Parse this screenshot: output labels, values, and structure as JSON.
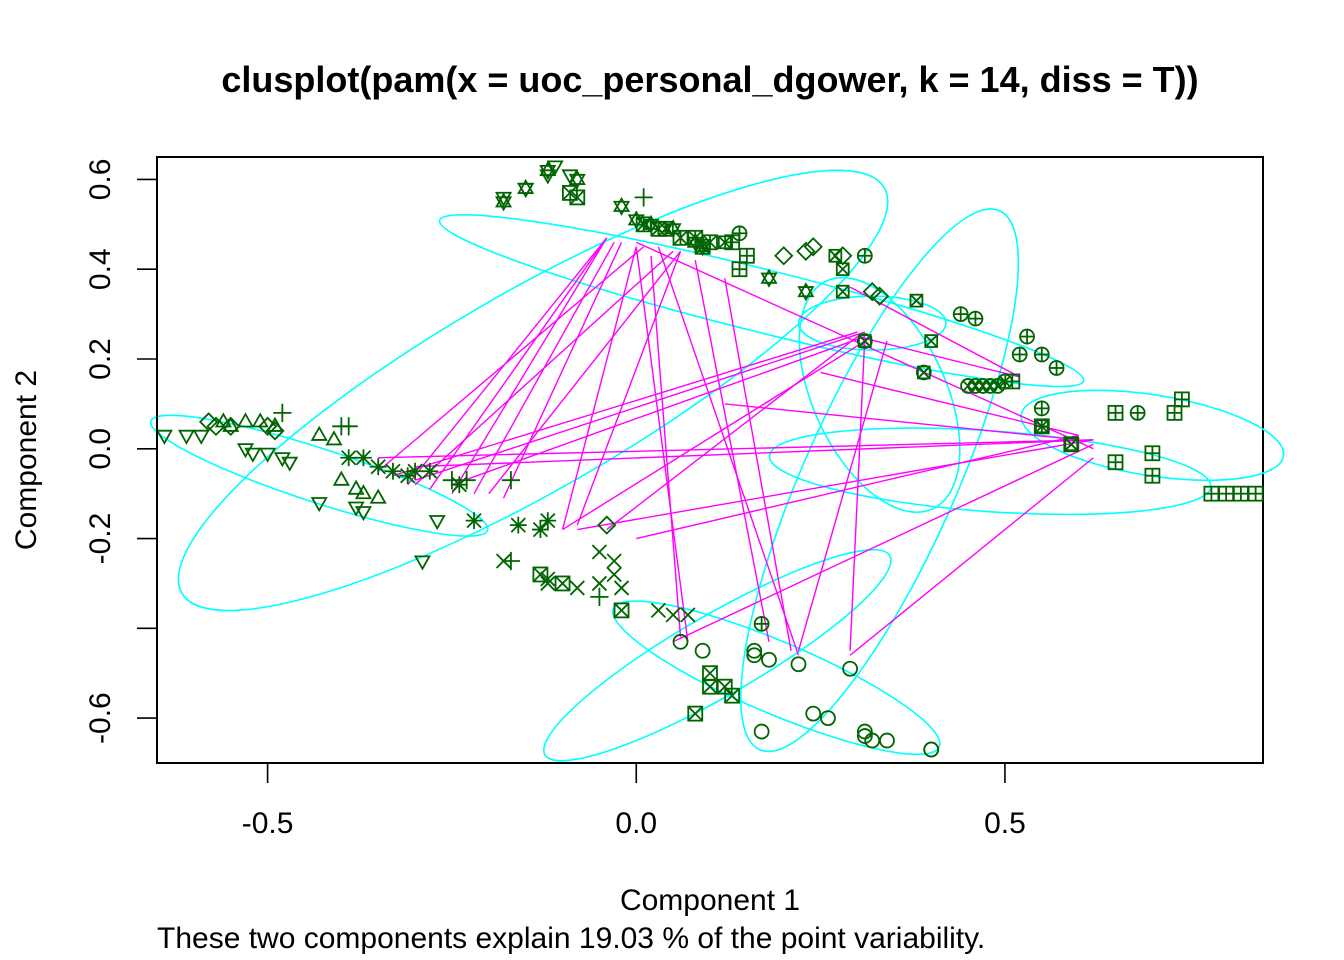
{
  "chart_data": {
    "type": "scatter",
    "title": "clusplot(pam(x = uoc_personal_dgower, k = 14, diss = T))",
    "xlabel": "Component 1",
    "ylabel": "Component 2",
    "subtitle": "These two components explain 19.03 % of the point variability.",
    "xlim": [
      -0.65,
      0.85
    ],
    "ylim": [
      -0.7,
      0.65
    ],
    "x_ticks": [
      {
        "value": -0.5,
        "label": "-0.5"
      },
      {
        "value": 0.0,
        "label": "0.0"
      },
      {
        "value": 0.5,
        "label": "0.5"
      }
    ],
    "y_ticks": [
      {
        "value": -0.6,
        "label": "-0.6"
      },
      {
        "value": -0.4,
        "label": ""
      },
      {
        "value": -0.2,
        "label": "-0.2"
      },
      {
        "value": 0.0,
        "label": "0.0"
      },
      {
        "value": 0.2,
        "label": "0.2"
      },
      {
        "value": 0.4,
        "label": "0.4"
      },
      {
        "value": 0.6,
        "label": "0.6"
      }
    ],
    "colors": {
      "points": "#006400",
      "ellipses": "#00ffff",
      "lines": "#ff00ff",
      "frame": "#000000"
    },
    "clusters": [
      {
        "id": 1,
        "symbol": "circle",
        "points": [
          [
            0.06,
            -0.43
          ],
          [
            0.09,
            -0.45
          ],
          [
            0.16,
            -0.45
          ],
          [
            0.16,
            -0.46
          ],
          [
            0.22,
            -0.48
          ],
          [
            0.29,
            -0.49
          ],
          [
            0.18,
            -0.47
          ],
          [
            0.24,
            -0.59
          ],
          [
            0.26,
            -0.6
          ],
          [
            0.31,
            -0.63
          ],
          [
            0.31,
            -0.64
          ],
          [
            0.32,
            -0.65
          ],
          [
            0.34,
            -0.65
          ],
          [
            0.4,
            -0.67
          ],
          [
            0.4,
            -0.67
          ],
          [
            0.17,
            -0.63
          ]
        ]
      },
      {
        "id": 2,
        "symbol": "triangle",
        "points": [
          [
            -0.56,
            0.06
          ],
          [
            -0.55,
            0.05
          ],
          [
            -0.53,
            0.06
          ],
          [
            -0.51,
            0.06
          ],
          [
            -0.49,
            0.05
          ],
          [
            -0.43,
            0.03
          ],
          [
            -0.41,
            0.02
          ],
          [
            -0.4,
            -0.07
          ],
          [
            -0.38,
            -0.09
          ],
          [
            -0.37,
            -0.1
          ],
          [
            -0.35,
            -0.11
          ]
        ]
      },
      {
        "id": 3,
        "symbol": "plus",
        "points": [
          [
            -0.48,
            0.08
          ],
          [
            -0.4,
            0.05
          ],
          [
            -0.39,
            0.05
          ],
          [
            -0.25,
            -0.07
          ],
          [
            -0.23,
            -0.07
          ],
          [
            -0.17,
            -0.07
          ],
          [
            -0.17,
            -0.25
          ],
          [
            0.01,
            0.56
          ],
          [
            -0.05,
            -0.33
          ]
        ]
      },
      {
        "id": 4,
        "symbol": "cross",
        "points": [
          [
            -0.05,
            -0.23
          ],
          [
            -0.03,
            -0.25
          ],
          [
            -0.03,
            -0.28
          ],
          [
            -0.02,
            -0.31
          ],
          [
            -0.05,
            -0.3
          ],
          [
            -0.12,
            -0.29
          ],
          [
            -0.08,
            -0.31
          ],
          [
            0.03,
            -0.36
          ],
          [
            0.05,
            -0.37
          ],
          [
            -0.18,
            -0.25
          ],
          [
            0.07,
            -0.37
          ],
          [
            -0.12,
            -0.3
          ]
        ]
      },
      {
        "id": 5,
        "symbol": "diamond",
        "points": [
          [
            -0.58,
            0.06
          ],
          [
            -0.57,
            0.05
          ],
          [
            -0.55,
            0.05
          ],
          [
            -0.5,
            0.05
          ],
          [
            -0.49,
            0.04
          ],
          [
            -0.04,
            -0.17
          ],
          [
            0.2,
            0.43
          ],
          [
            0.23,
            0.44
          ],
          [
            0.24,
            0.45
          ],
          [
            0.28,
            0.43
          ],
          [
            0.32,
            0.35
          ],
          [
            0.33,
            0.34
          ]
        ]
      },
      {
        "id": 6,
        "symbol": "triangle-down",
        "points": [
          [
            -0.64,
            0.03
          ],
          [
            -0.61,
            0.03
          ],
          [
            -0.59,
            0.03
          ],
          [
            -0.53,
            0.0
          ],
          [
            -0.52,
            -0.01
          ],
          [
            -0.5,
            -0.01
          ],
          [
            -0.48,
            -0.02
          ],
          [
            -0.47,
            -0.03
          ],
          [
            -0.43,
            -0.12
          ],
          [
            -0.38,
            -0.13
          ],
          [
            -0.37,
            -0.14
          ],
          [
            -0.29,
            -0.25
          ],
          [
            -0.27,
            -0.16
          ],
          [
            -0.18,
            0.56
          ],
          [
            -0.15,
            0.58
          ],
          [
            -0.12,
            0.61
          ],
          [
            -0.11,
            0.63
          ],
          [
            -0.09,
            0.61
          ]
        ]
      },
      {
        "id": 7,
        "symbol": "x-in-square",
        "points": [
          [
            0.4,
            0.24
          ],
          [
            0.39,
            0.17
          ],
          [
            0.31,
            0.24
          ],
          [
            0.55,
            0.05
          ],
          [
            0.59,
            0.01
          ],
          [
            0.38,
            0.33
          ],
          [
            0.28,
            0.35
          ],
          [
            0.28,
            0.4
          ],
          [
            0.27,
            0.43
          ],
          [
            0.12,
            0.46
          ]
        ]
      },
      {
        "id": 8,
        "symbol": "asterisk",
        "points": [
          [
            -0.39,
            -0.02
          ],
          [
            -0.37,
            -0.02
          ],
          [
            -0.35,
            -0.04
          ],
          [
            -0.33,
            -0.05
          ],
          [
            -0.31,
            -0.06
          ],
          [
            -0.3,
            -0.05
          ],
          [
            -0.28,
            -0.05
          ],
          [
            -0.24,
            -0.08
          ],
          [
            -0.22,
            -0.16
          ],
          [
            -0.16,
            -0.17
          ],
          [
            -0.13,
            -0.18
          ],
          [
            -0.12,
            -0.16
          ]
        ]
      },
      {
        "id": 9,
        "symbol": "star-of-david",
        "points": [
          [
            -0.18,
            0.55
          ],
          [
            -0.15,
            0.58
          ],
          [
            -0.12,
            0.62
          ],
          [
            -0.08,
            0.6
          ],
          [
            -0.02,
            0.54
          ],
          [
            0.0,
            0.51
          ],
          [
            0.02,
            0.5
          ],
          [
            0.05,
            0.49
          ],
          [
            0.08,
            0.46
          ],
          [
            0.09,
            0.45
          ],
          [
            0.18,
            0.38
          ],
          [
            0.23,
            0.35
          ]
        ]
      },
      {
        "id": 10,
        "symbol": "circle-plus",
        "points": [
          [
            0.14,
            0.48
          ],
          [
            0.31,
            0.43
          ],
          [
            0.44,
            0.3
          ],
          [
            0.46,
            0.29
          ],
          [
            0.53,
            0.25
          ],
          [
            0.52,
            0.21
          ],
          [
            0.55,
            0.21
          ],
          [
            0.57,
            0.18
          ],
          [
            0.55,
            0.09
          ],
          [
            0.68,
            0.08
          ],
          [
            0.17,
            -0.39
          ]
        ]
      },
      {
        "id": 11,
        "symbol": "square-plus",
        "points": [
          [
            0.14,
            0.4
          ],
          [
            0.15,
            0.43
          ],
          [
            0.13,
            0.46
          ],
          [
            0.51,
            0.15
          ],
          [
            0.55,
            0.05
          ],
          [
            0.65,
            0.08
          ],
          [
            0.73,
            0.08
          ],
          [
            0.74,
            0.11
          ],
          [
            0.7,
            -0.01
          ],
          [
            0.7,
            -0.06
          ],
          [
            0.65,
            -0.03
          ],
          [
            0.78,
            -0.1
          ],
          [
            0.8,
            -0.1
          ],
          [
            0.82,
            -0.1
          ],
          [
            0.84,
            -0.1
          ]
        ]
      },
      {
        "id": 12,
        "symbol": "circle-cross",
        "points": [
          [
            0.46,
            0.14
          ],
          [
            0.47,
            0.14
          ],
          [
            0.48,
            0.14
          ],
          [
            0.45,
            0.14
          ],
          [
            0.49,
            0.14
          ],
          [
            0.5,
            0.15
          ],
          [
            0.31,
            0.24
          ],
          [
            0.39,
            0.17
          ]
        ]
      },
      {
        "id": 13,
        "symbol": "square-x",
        "points": [
          [
            -0.13,
            -0.28
          ],
          [
            -0.1,
            -0.3
          ],
          [
            -0.02,
            -0.36
          ],
          [
            0.1,
            -0.5
          ],
          [
            0.1,
            -0.53
          ],
          [
            0.12,
            -0.53
          ],
          [
            0.13,
            -0.55
          ],
          [
            0.08,
            -0.59
          ],
          [
            0.59,
            0.01
          ],
          [
            -0.09,
            0.57
          ],
          [
            -0.08,
            0.56
          ]
        ]
      },
      {
        "id": 14,
        "symbol": "square-cross",
        "points": [
          [
            0.01,
            0.5
          ],
          [
            0.03,
            0.49
          ],
          [
            0.04,
            0.49
          ],
          [
            0.06,
            0.47
          ],
          [
            0.08,
            0.47
          ],
          [
            0.09,
            0.45
          ],
          [
            0.1,
            0.46
          ]
        ]
      }
    ],
    "ellipses": [
      {
        "cx": 0.33,
        "cy": -0.07,
        "rx": 0.4,
        "ry": 0.17,
        "angle": 66
      },
      {
        "cx": -0.14,
        "cy": 0.13,
        "rx": 0.55,
        "ry": 0.22,
        "angle": 30
      },
      {
        "cx": -0.43,
        "cy": -0.06,
        "rx": 0.24,
        "ry": 0.06,
        "angle": -18
      },
      {
        "cx": 0.17,
        "cy": 0.33,
        "rx": 0.45,
        "ry": 0.07,
        "angle": -14
      },
      {
        "cx": 0.11,
        "cy": -0.46,
        "rx": 0.27,
        "ry": 0.09,
        "angle": 30
      },
      {
        "cx": 0.19,
        "cy": -0.51,
        "rx": 0.24,
        "ry": 0.08,
        "angle": -23
      },
      {
        "cx": 0.7,
        "cy": 0.03,
        "rx": 0.18,
        "ry": 0.09,
        "angle": -9
      },
      {
        "cx": 0.32,
        "cy": 0.28,
        "rx": 0.1,
        "ry": 0.06,
        "angle": 0
      },
      {
        "cx": 0.33,
        "cy": 0.12,
        "rx": 0.09,
        "ry": 0.28,
        "angle": 25
      },
      {
        "cx": 0.48,
        "cy": -0.05,
        "rx": 0.3,
        "ry": 0.09,
        "angle": -4
      }
    ],
    "lines": [
      [
        [
          -0.04,
          0.47
        ],
        [
          -0.31,
          -0.08
        ]
      ],
      [
        [
          -0.04,
          0.47
        ],
        [
          -0.28,
          -0.09
        ]
      ],
      [
        [
          -0.04,
          0.47
        ],
        [
          -0.25,
          -0.1
        ]
      ],
      [
        [
          -0.03,
          0.46
        ],
        [
          -0.22,
          -0.1
        ]
      ],
      [
        [
          -0.02,
          0.46
        ],
        [
          -0.18,
          -0.11
        ]
      ],
      [
        [
          0.01,
          0.45
        ],
        [
          -0.35,
          -0.05
        ]
      ],
      [
        [
          0.05,
          0.44
        ],
        [
          -0.3,
          -0.08
        ]
      ],
      [
        [
          0.06,
          0.44
        ],
        [
          -0.2,
          -0.1
        ]
      ],
      [
        [
          0.06,
          0.44
        ],
        [
          -0.08,
          -0.17
        ]
      ],
      [
        [
          0.0,
          0.45
        ],
        [
          -0.1,
          -0.18
        ]
      ],
      [
        [
          0.03,
          0.45
        ],
        [
          0.22,
          -0.46
        ]
      ],
      [
        [
          0.08,
          0.42
        ],
        [
          0.18,
          -0.43
        ]
      ],
      [
        [
          0.12,
          0.38
        ],
        [
          0.21,
          -0.45
        ]
      ],
      [
        [
          0.0,
          0.45
        ],
        [
          0.07,
          -0.43
        ]
      ],
      [
        [
          0.02,
          0.43
        ],
        [
          0.06,
          -0.42
        ]
      ],
      [
        [
          0.3,
          0.26
        ],
        [
          -0.33,
          -0.06
        ]
      ],
      [
        [
          0.31,
          0.26
        ],
        [
          -0.3,
          -0.07
        ]
      ],
      [
        [
          0.31,
          0.25
        ],
        [
          -0.25,
          -0.08
        ]
      ],
      [
        [
          0.32,
          0.25
        ],
        [
          -0.1,
          -0.18
        ]
      ],
      [
        [
          0.3,
          0.25
        ],
        [
          -0.04,
          -0.18
        ]
      ],
      [
        [
          0.3,
          0.25
        ],
        [
          0.52,
          0.16
        ]
      ],
      [
        [
          0.52,
          0.16
        ],
        [
          0.29,
          0.36
        ]
      ],
      [
        [
          0.31,
          0.25
        ],
        [
          0.29,
          -0.45
        ]
      ],
      [
        [
          0.34,
          0.24
        ],
        [
          0.22,
          -0.45
        ]
      ],
      [
        [
          0.62,
          0.02
        ],
        [
          -0.35,
          -0.02
        ]
      ],
      [
        [
          0.62,
          0.02
        ],
        [
          -0.3,
          -0.04
        ]
      ],
      [
        [
          0.62,
          0.02
        ],
        [
          -0.08,
          -0.18
        ]
      ],
      [
        [
          0.62,
          0.01
        ],
        [
          0.05,
          -0.43
        ]
      ],
      [
        [
          0.6,
          0.03
        ],
        [
          0.0,
          -0.2
        ]
      ],
      [
        [
          0.62,
          -0.02
        ],
        [
          0.29,
          -0.46
        ]
      ],
      [
        [
          0.6,
          0.02
        ],
        [
          0.12,
          0.1
        ]
      ],
      [
        [
          0.6,
          0.03
        ],
        [
          0.25,
          0.17
        ]
      ],
      [
        [
          0.62,
          0.0
        ],
        [
          0.0,
          0.46
        ]
      ]
    ]
  }
}
